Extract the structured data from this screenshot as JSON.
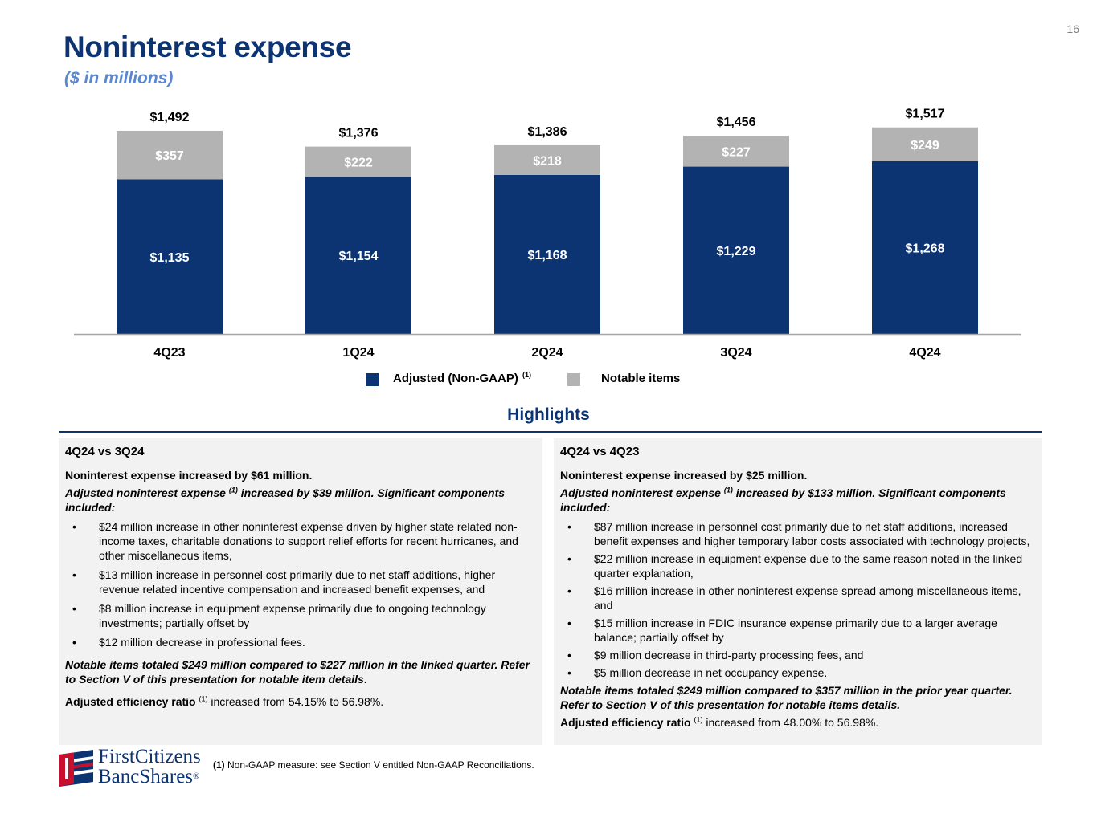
{
  "page": {
    "number": "16",
    "title": "Noninterest expense",
    "subtitle": "($ in millions)"
  },
  "chart_data": {
    "type": "bar",
    "stacked": true,
    "title": "Noninterest expense",
    "categories": [
      "4Q23",
      "1Q24",
      "2Q24",
      "3Q24",
      "4Q24"
    ],
    "series": [
      {
        "name": "Adjusted (Non-GAAP)",
        "name_sup": "(1)",
        "color": "#0c3472",
        "values": [
          1135,
          1154,
          1168,
          1229,
          1268
        ],
        "labels": [
          "$1,135",
          "$1,154",
          "$1,168",
          "$1,229",
          "$1,268"
        ]
      },
      {
        "name": "Notable items",
        "color": "#b3b3b3",
        "values": [
          357,
          222,
          218,
          227,
          249
        ],
        "labels": [
          "$357",
          "$222",
          "$218",
          "$227",
          "$249"
        ]
      }
    ],
    "totals": [
      1492,
      1376,
      1386,
      1456,
      1517
    ],
    "total_labels": [
      "$1,492",
      "$1,376",
      "$1,386",
      "$1,456",
      "$1,517"
    ],
    "ylim": [
      0,
      1600
    ],
    "legend_position": "bottom-center",
    "grid": false
  },
  "highlights": {
    "title": "Highlights",
    "left": {
      "heading": "4Q24 vs 3Q24",
      "lead": "Noninterest expense increased by $61 million.",
      "adj_prefix": "Adjusted noninterest expense",
      "adj_sup": "(1)",
      "adj_suffix": "increased by $39 million. Significant components included:",
      "bullets": [
        "$24 million increase in other noninterest expense driven by higher state related non-income taxes, charitable donations to support relief efforts for recent hurricanes, and other miscellaneous items,",
        "$13 million increase in personnel cost primarily due to net staff additions, higher revenue related incentive compensation and increased benefit expenses, and",
        "$8 million increase in equipment expense primarily due to ongoing technology investments; partially offset by",
        "$12 million decrease in professional fees."
      ],
      "notable": "Notable items totaled $249 million compared to $227 million in the linked quarter. Refer to Section V of this presentation for notable item details",
      "notable_end": ".",
      "eff_label": "Adjusted efficiency ratio",
      "eff_sup": "(1)",
      "eff_text": "increased from 54.15% to 56.98%."
    },
    "right": {
      "heading": "4Q24 vs 4Q23",
      "lead": "Noninterest expense increased by $25 million.",
      "adj_prefix": "Adjusted noninterest expense",
      "adj_sup": "(1)",
      "adj_suffix": "increased by $133 million. Significant components included:",
      "bullets": [
        "$87 million increase in personnel cost primarily due to net staff additions, increased benefit expenses and higher temporary labor costs associated with technology projects,",
        "$22 million increase in equipment expense due to the same reason noted in the linked quarter explanation,",
        "$16 million increase in other noninterest expense spread among miscellaneous items, and",
        "$15 million increase in FDIC insurance expense primarily due to a larger average balance; partially offset by",
        "$9 million decrease in third-party processing fees, and",
        "$5 million decrease in net occupancy expense."
      ],
      "notable": "Notable items totaled $249 million compared to $357 million in the prior year quarter. Refer to Section V of this presentation for notable items details.",
      "eff_label": "Adjusted efficiency ratio",
      "eff_sup": "(1)",
      "eff_text": "increased from 48.00% to 56.98%."
    }
  },
  "footnote": {
    "marker": "(1)",
    "text": "Non-GAAP measure: see Section V entitled Non-GAAP Reconciliations."
  },
  "logo": {
    "line1": "FirstCitizens",
    "line2": "BancShares",
    "mark": "®"
  }
}
